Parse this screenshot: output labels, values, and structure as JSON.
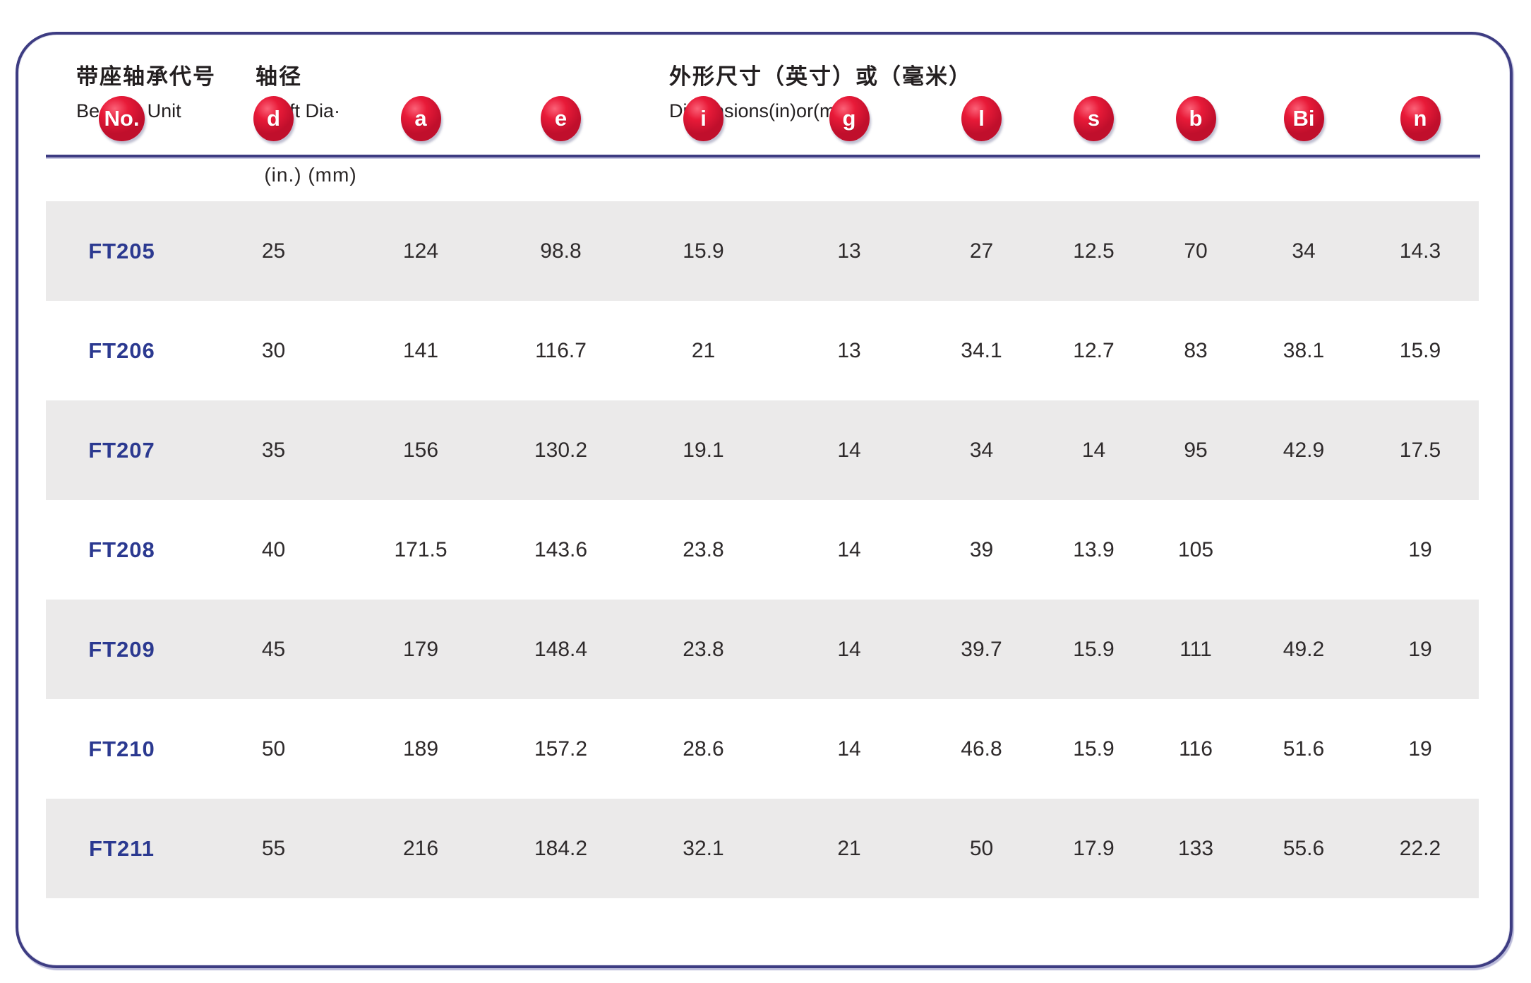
{
  "header": {
    "bearing_cn": "带座轴承代号",
    "bearing_en": "Bearing Unit",
    "shaft_cn": "轴径",
    "shaft_en": "Shaft Dia·",
    "dims_cn": "外形尺寸（英寸）或（毫米）",
    "dims_en": "Dimensions(in)or(mm)",
    "units": "(in.) (mm)"
  },
  "columns": [
    "No.",
    "d",
    "a",
    "e",
    "i",
    "g",
    "l",
    "s",
    "b",
    "Bi",
    "n"
  ],
  "table": {
    "rows": [
      {
        "no": "FT205",
        "values": [
          "25",
          "124",
          "98.8",
          "15.9",
          "13",
          "27",
          "12.5",
          "70",
          "34",
          "14.3"
        ]
      },
      {
        "no": "FT206",
        "values": [
          "30",
          "141",
          "116.7",
          "21",
          "13",
          "34.1",
          "12.7",
          "83",
          "38.1",
          "15.9"
        ]
      },
      {
        "no": "FT207",
        "values": [
          "35",
          "156",
          "130.2",
          "19.1",
          "14",
          "34",
          "14",
          "95",
          "42.9",
          "17.5"
        ]
      },
      {
        "no": "FT208",
        "values": [
          "40",
          "171.5",
          "143.6",
          "23.8",
          "14",
          "39",
          "13.9",
          "105",
          "",
          "19"
        ]
      },
      {
        "no": "FT209",
        "values": [
          "45",
          "179",
          "148.4",
          "23.8",
          "14",
          "39.7",
          "15.9",
          "111",
          "49.2",
          "19"
        ]
      },
      {
        "no": "FT210",
        "values": [
          "50",
          "189",
          "157.2",
          "28.6",
          "14",
          "46.8",
          "15.9",
          "116",
          "51.6",
          "19"
        ]
      },
      {
        "no": "FT211",
        "values": [
          "55",
          "216",
          "184.2",
          "32.1",
          "21",
          "50",
          "17.9",
          "133",
          "55.6",
          "22.2"
        ]
      }
    ]
  },
  "colors": {
    "badge_red": "#e81a38",
    "navy_border": "#3d3c82",
    "row_shade_gray": "#ebeaea",
    "bearing_code_blue": "#2b3990",
    "text_dark": "#2e2a2b"
  }
}
